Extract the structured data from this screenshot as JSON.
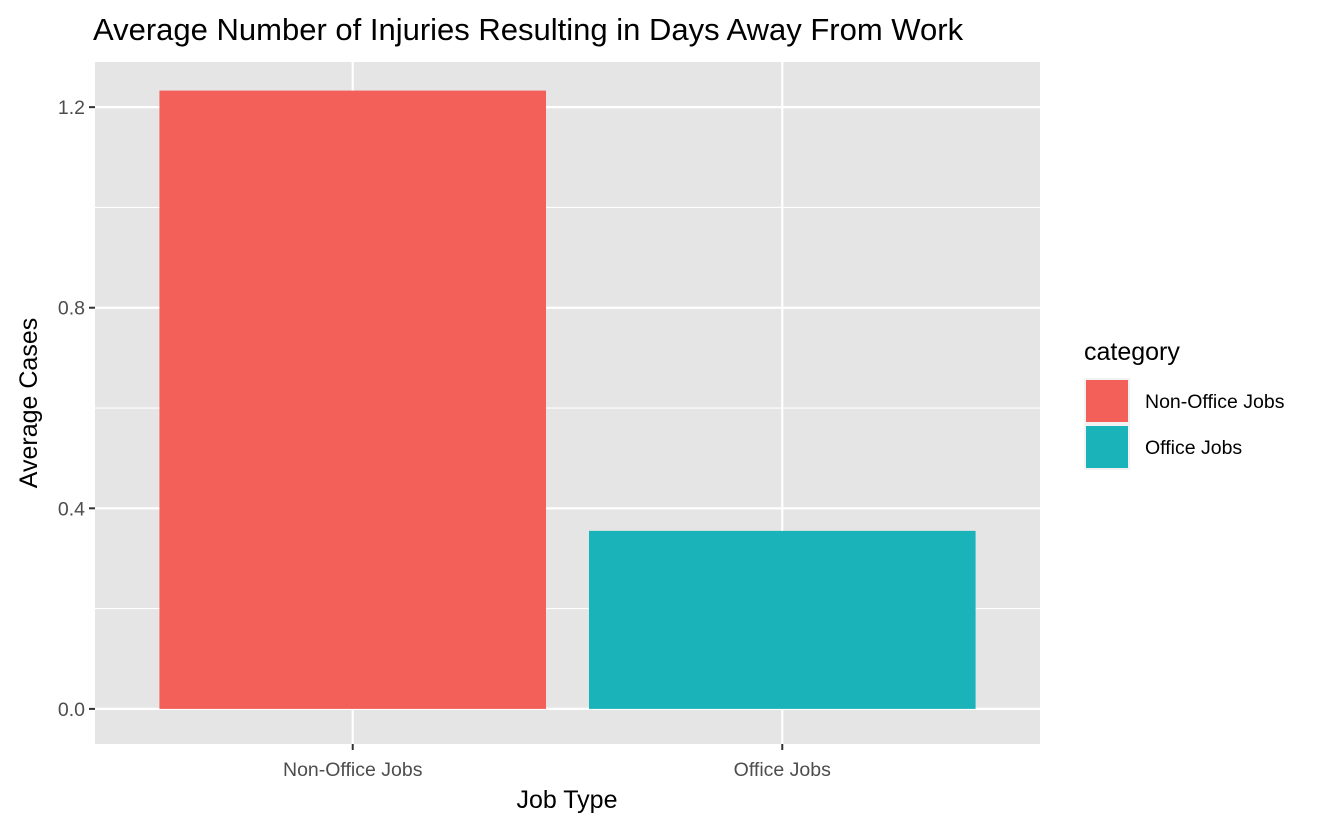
{
  "chart_data": {
    "type": "bar",
    "title": "Average Number of Injuries Resulting in Days Away From Work",
    "xlabel": "Job Type",
    "ylabel": "Average Cases",
    "categories": [
      "Non-Office Jobs",
      "Office Jobs"
    ],
    "values": [
      1.233,
      0.355
    ],
    "colors": [
      "#F8766D",
      "#00BFC4"
    ],
    "bar_colors_rendered": [
      "#F3605A",
      "#1AB3B9"
    ],
    "ylim": [
      -0.07,
      1.29
    ],
    "yticks": [
      0.0,
      0.4,
      0.8,
      1.2
    ],
    "ytick_labels": [
      "0.0",
      "0.4",
      "0.8",
      "1.2"
    ],
    "grid": true,
    "panel_background": "#E5E5E5",
    "legend": {
      "title": "category",
      "position": "right",
      "entries": [
        "Non-Office Jobs",
        "Office Jobs"
      ]
    }
  }
}
